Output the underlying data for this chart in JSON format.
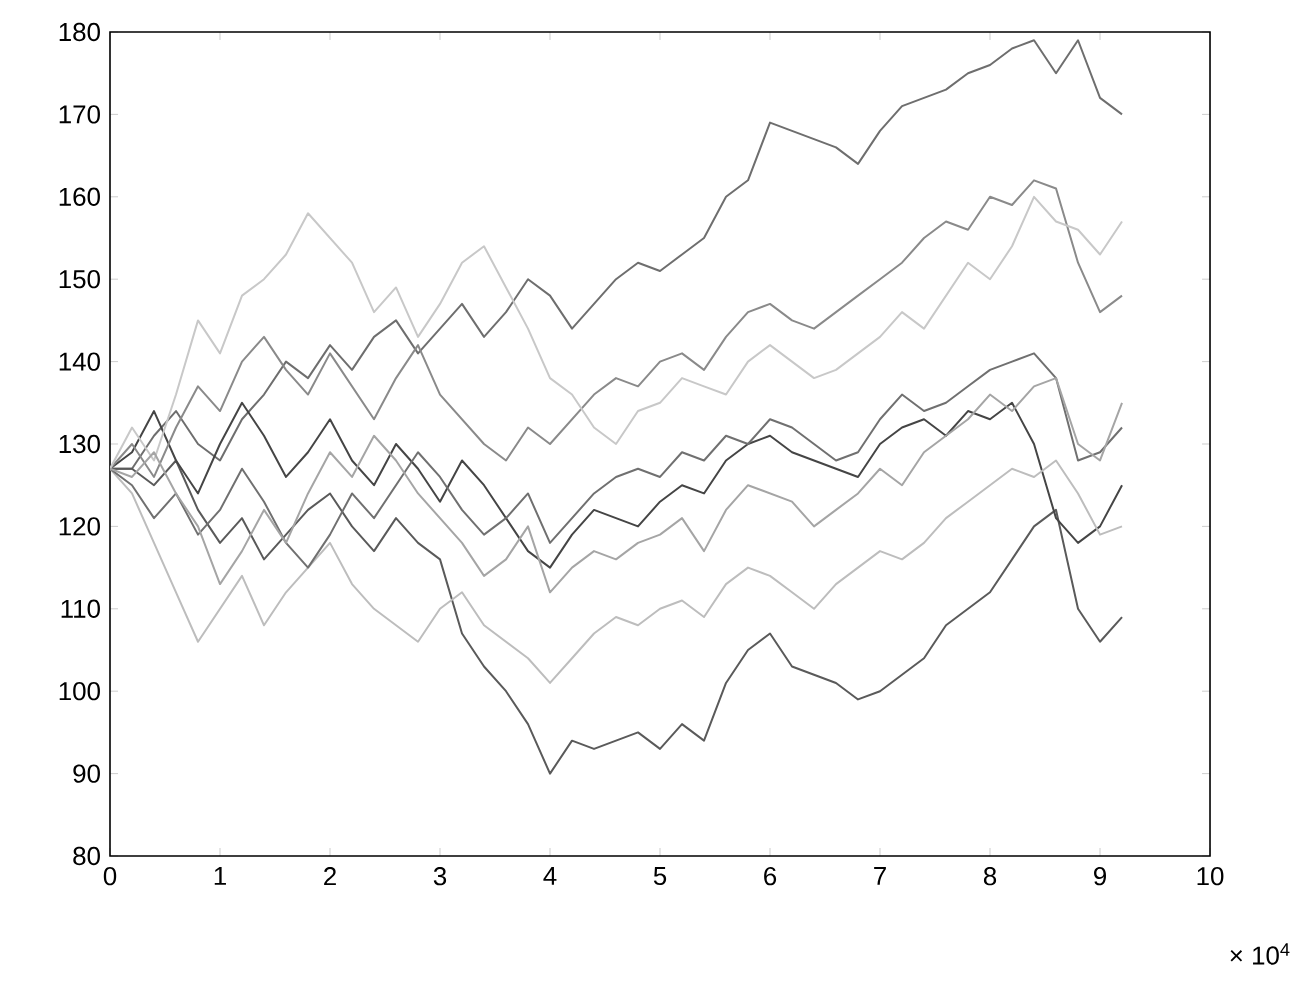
{
  "chart_data": {
    "type": "line",
    "xlim": [
      0,
      10
    ],
    "ylim": [
      80,
      180
    ],
    "xticks": [
      0,
      1,
      2,
      3,
      4,
      5,
      6,
      7,
      8,
      9,
      10
    ],
    "yticks": [
      80,
      90,
      100,
      110,
      120,
      130,
      140,
      150,
      160,
      170,
      180
    ],
    "x": [
      0,
      0.2,
      0.4,
      0.6,
      0.8,
      1.0,
      1.2,
      1.4,
      1.6,
      1.8,
      2.0,
      2.2,
      2.4,
      2.6,
      2.8,
      3.0,
      3.2,
      3.4,
      3.6,
      3.8,
      4.0,
      4.2,
      4.4,
      4.6,
      4.8,
      5.0,
      5.2,
      5.4,
      5.6,
      5.8,
      6.0,
      6.2,
      6.4,
      6.6,
      6.8,
      7.0,
      7.2,
      7.4,
      7.6,
      7.8,
      8.0,
      8.2,
      8.4,
      8.6,
      8.8,
      9.0,
      9.2
    ],
    "series": [
      {
        "color": "#6e6e6e",
        "values": [
          127,
          127,
          131,
          134,
          130,
          128,
          133,
          136,
          140,
          138,
          142,
          139,
          143,
          145,
          141,
          144,
          147,
          143,
          146,
          150,
          148,
          144,
          147,
          150,
          152,
          151,
          153,
          155,
          160,
          162,
          169,
          168,
          167,
          166,
          164,
          168,
          171,
          172,
          173,
          175,
          176,
          178,
          179,
          175,
          179,
          172,
          170
        ]
      },
      {
        "color": "#5a5a5a",
        "values": [
          127,
          127,
          125,
          128,
          122,
          118,
          121,
          116,
          119,
          122,
          124,
          120,
          117,
          121,
          118,
          116,
          107,
          103,
          100,
          96,
          90,
          94,
          93,
          94,
          95,
          93,
          96,
          94,
          101,
          105,
          107,
          103,
          102,
          101,
          99,
          100,
          102,
          104,
          108,
          110,
          112,
          116,
          120,
          122,
          110,
          106,
          109
        ]
      },
      {
        "color": "#454545",
        "values": [
          127,
          129,
          134,
          128,
          124,
          130,
          135,
          131,
          126,
          129,
          133,
          128,
          125,
          130,
          127,
          123,
          128,
          125,
          121,
          117,
          115,
          119,
          122,
          121,
          120,
          123,
          125,
          124,
          128,
          130,
          131,
          129,
          128,
          127,
          126,
          130,
          132,
          133,
          131,
          134,
          133,
          135,
          130,
          121,
          118,
          120,
          125
        ]
      },
      {
        "color": "#bdbdbd",
        "values": [
          127,
          124,
          118,
          112,
          106,
          110,
          114,
          108,
          112,
          115,
          118,
          113,
          110,
          108,
          106,
          110,
          112,
          108,
          106,
          104,
          101,
          104,
          107,
          109,
          108,
          110,
          111,
          109,
          113,
          115,
          114,
          112,
          110,
          113,
          115,
          117,
          116,
          118,
          121,
          123,
          125,
          127,
          126,
          128,
          124,
          119,
          120
        ]
      },
      {
        "color": "#8a8a8a",
        "values": [
          127,
          130,
          126,
          132,
          137,
          134,
          140,
          143,
          139,
          136,
          141,
          137,
          133,
          138,
          142,
          136,
          133,
          130,
          128,
          132,
          130,
          133,
          136,
          138,
          137,
          140,
          141,
          139,
          143,
          146,
          147,
          145,
          144,
          146,
          148,
          150,
          152,
          155,
          157,
          156,
          160,
          159,
          162,
          161,
          152,
          146,
          148
        ]
      },
      {
        "color": "#c8c8c8",
        "values": [
          127,
          132,
          128,
          136,
          145,
          141,
          148,
          150,
          153,
          158,
          155,
          152,
          146,
          149,
          143,
          147,
          152,
          154,
          149,
          144,
          138,
          136,
          132,
          130,
          134,
          135,
          138,
          137,
          136,
          140,
          142,
          140,
          138,
          139,
          141,
          143,
          146,
          144,
          148,
          152,
          150,
          154,
          160,
          157,
          156,
          153,
          157
        ]
      },
      {
        "color": "#707070",
        "values": [
          127,
          125,
          121,
          124,
          119,
          122,
          127,
          123,
          118,
          115,
          119,
          124,
          121,
          125,
          129,
          126,
          122,
          119,
          121,
          124,
          118,
          121,
          124,
          126,
          127,
          126,
          129,
          128,
          131,
          130,
          133,
          132,
          130,
          128,
          129,
          133,
          136,
          134,
          135,
          137,
          139,
          140,
          141,
          138,
          128,
          129,
          132
        ]
      },
      {
        "color": "#a5a5a5",
        "values": [
          127,
          126,
          129,
          124,
          120,
          113,
          117,
          122,
          118,
          124,
          129,
          126,
          131,
          128,
          124,
          121,
          118,
          114,
          116,
          120,
          112,
          115,
          117,
          116,
          118,
          119,
          121,
          117,
          122,
          125,
          124,
          123,
          120,
          122,
          124,
          127,
          125,
          129,
          131,
          133,
          136,
          134,
          137,
          138,
          130,
          128,
          135
        ]
      }
    ],
    "annotations": [
      "× 10$^{4}$"
    ]
  }
}
